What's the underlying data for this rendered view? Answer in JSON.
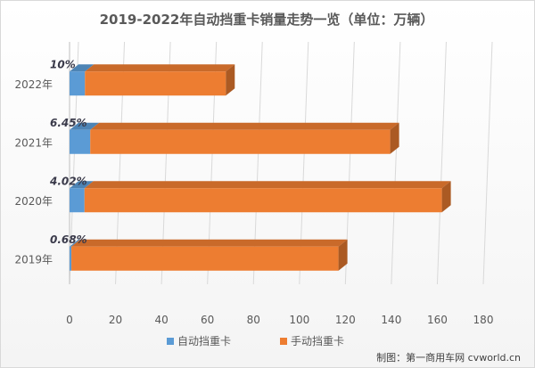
{
  "chart_data": {
    "type": "bar",
    "orientation": "horizontal",
    "stacked": true,
    "title": "2019-2022年自动挡重卡销量走势一览（单位：万辆）",
    "categories": [
      "2019年",
      "2020年",
      "2021年",
      "2022年"
    ],
    "series": [
      {
        "name": "自动挡重卡",
        "color": "#5b9bd5",
        "values": [
          0.8,
          6.5,
          9.0,
          6.7
        ]
      },
      {
        "name": "手动挡重卡",
        "color": "#ed7d31",
        "values": [
          116.2,
          155.5,
          130.5,
          61.3
        ]
      }
    ],
    "share_labels": [
      "0.68%",
      "4.02%",
      "6.45%",
      "10%"
    ],
    "xlim": [
      0,
      180
    ],
    "xticks": [
      0,
      20,
      40,
      60,
      80,
      100,
      120,
      140,
      160,
      180
    ],
    "grid": true,
    "legend_position": "bottom",
    "source": "制图：第一商用车网 cvworld.cn"
  }
}
